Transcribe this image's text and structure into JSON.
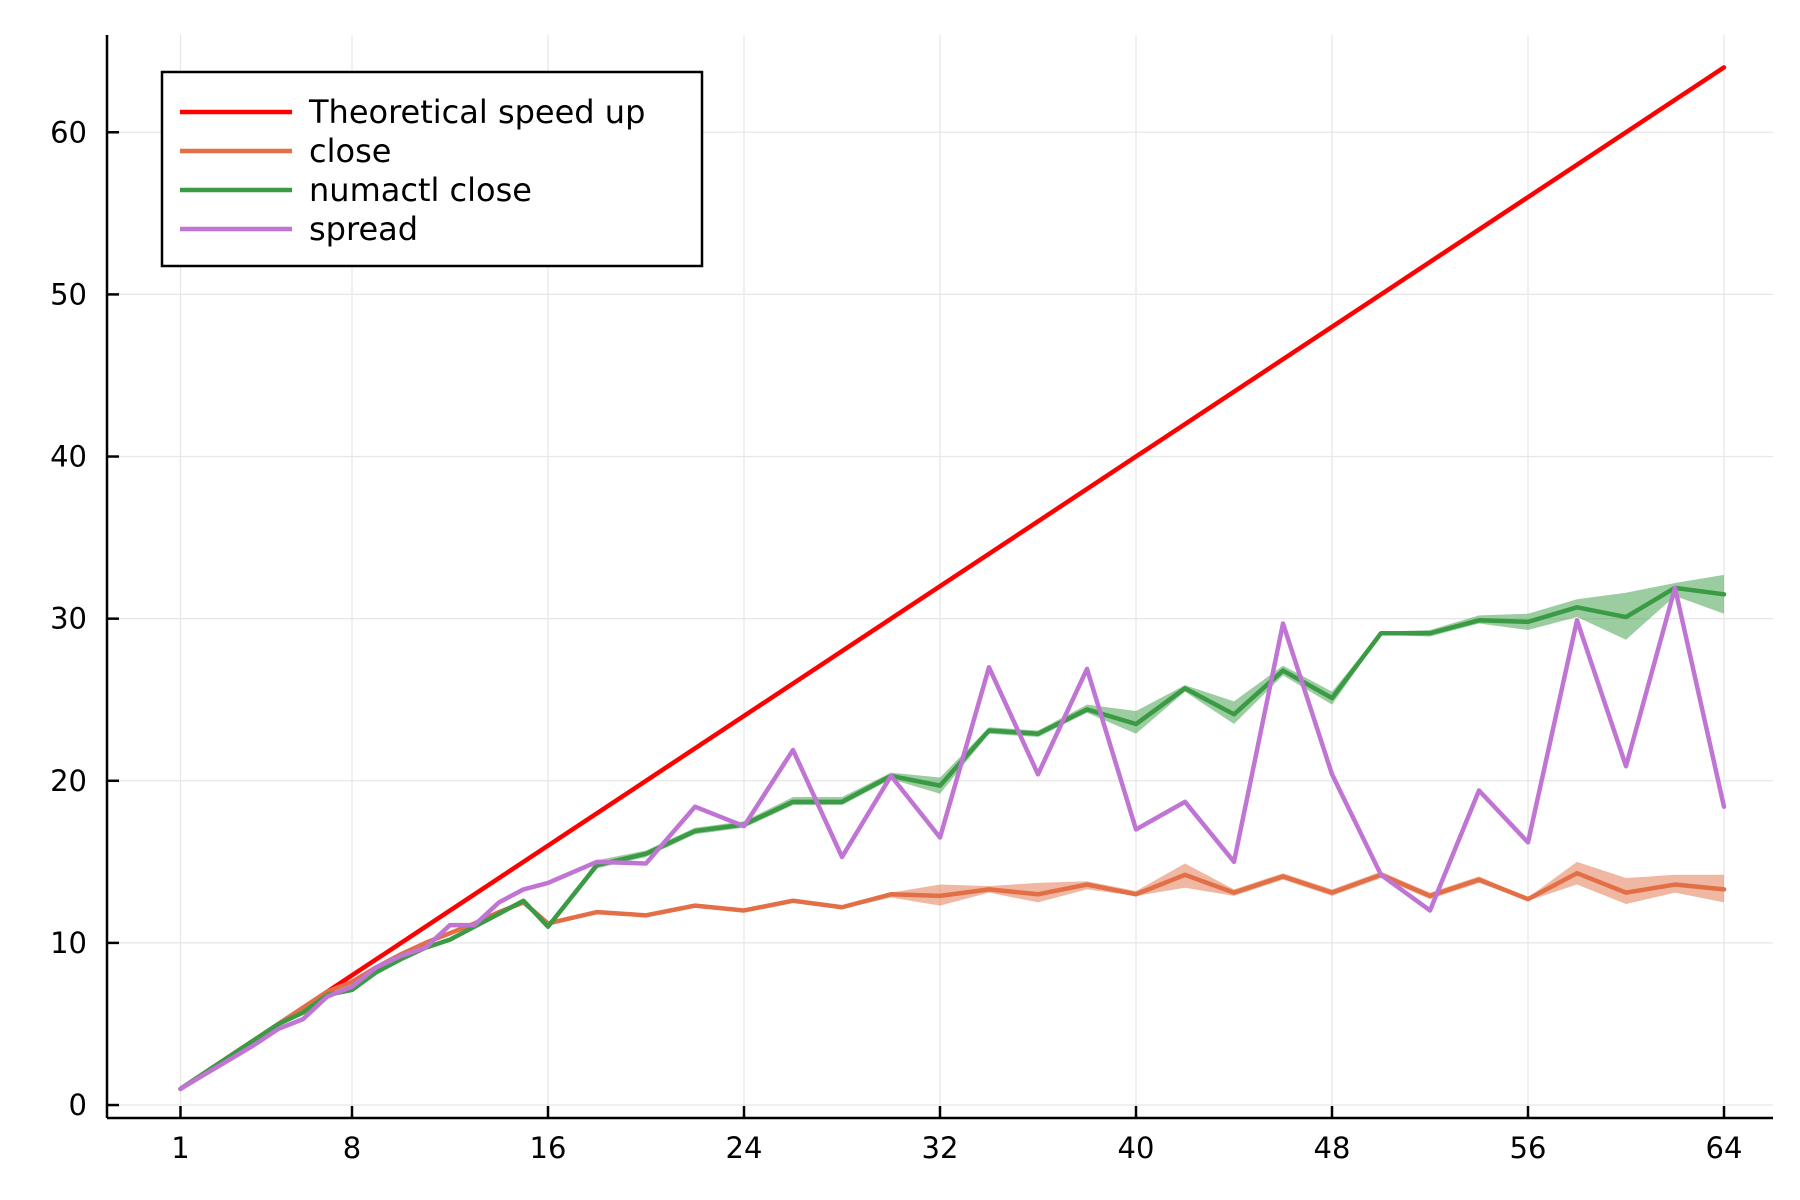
{
  "chart_data": {
    "type": "line",
    "title": "",
    "xlabel": "",
    "ylabel": "",
    "xlim": [
      -2,
      66
    ],
    "ylim": [
      -0.8,
      66
    ],
    "xticks": [
      1,
      8,
      16,
      24,
      32,
      40,
      48,
      56,
      64
    ],
    "xtick_labels": [
      "1",
      "8",
      "16",
      "24",
      "32",
      "40",
      "48",
      "56",
      "64"
    ],
    "yticks": [
      0,
      10,
      20,
      30,
      40,
      50,
      60
    ],
    "ytick_labels": [
      "0",
      "10",
      "20",
      "30",
      "40",
      "50",
      "60"
    ],
    "grid": true,
    "legend_position": "top-left",
    "series": [
      {
        "name": "Theoretical speed up",
        "color": "#ff0000",
        "x": [
          1,
          64
        ],
        "y": [
          1,
          64
        ]
      },
      {
        "name": "close",
        "color": "#e26f46",
        "x": [
          1,
          2,
          3,
          4,
          5,
          6,
          7,
          8,
          9,
          10,
          11,
          12,
          13,
          14,
          15,
          16,
          18,
          20,
          22,
          24,
          26,
          28,
          30,
          32,
          34,
          36,
          38,
          40,
          42,
          44,
          46,
          48,
          50,
          52,
          54,
          56,
          58,
          60,
          62,
          64
        ],
        "y": [
          1,
          2,
          3,
          4,
          5,
          6,
          7,
          7.6,
          8.5,
          9.3,
          10,
          10.6,
          11.2,
          11.9,
          12.5,
          11.2,
          11.9,
          11.7,
          12.3,
          12,
          12.6,
          12.2,
          13,
          12.9,
          13.3,
          13,
          13.6,
          13,
          14.2,
          13.1,
          14.1,
          13.1,
          14.2,
          12.9,
          13.9,
          12.7,
          14.3,
          13.1,
          13.6,
          13.3
        ],
        "band_lower": [
          1,
          2,
          3,
          4,
          5,
          6,
          7,
          7.6,
          8.5,
          9.3,
          10,
          10.6,
          11.2,
          11.9,
          12.5,
          11.2,
          11.8,
          11.6,
          12.2,
          11.9,
          12.5,
          12.1,
          12.8,
          12.3,
          13.1,
          12.5,
          13.3,
          12.9,
          13.4,
          12.9,
          13.9,
          12.9,
          14,
          12.7,
          13.7,
          12.6,
          13.6,
          12.4,
          13.1,
          12.5
        ],
        "band_upper": [
          1,
          2,
          3,
          4,
          5,
          6,
          7,
          7.6,
          8.5,
          9.3,
          10,
          10.6,
          11.2,
          11.9,
          12.5,
          11.2,
          12,
          11.8,
          12.4,
          12.1,
          12.7,
          12.3,
          13.1,
          13.6,
          13.5,
          13.7,
          13.8,
          13.2,
          14.9,
          13.3,
          14.3,
          13.3,
          14.4,
          13.1,
          14.1,
          12.8,
          15,
          14,
          14.2,
          14.2
        ],
        "band_color": "#e26f46"
      },
      {
        "name": "numactl close",
        "color": "#3a9b44",
        "x": [
          1,
          2,
          3,
          4,
          5,
          6,
          7,
          8,
          9,
          10,
          11,
          12,
          13,
          14,
          15,
          16,
          18,
          20,
          22,
          24,
          26,
          28,
          30,
          32,
          34,
          36,
          38,
          40,
          42,
          44,
          46,
          48,
          50,
          52,
          54,
          56,
          58,
          60,
          62,
          64
        ],
        "y": [
          1,
          2,
          3,
          4,
          5,
          5.7,
          6.8,
          7.1,
          8.2,
          9,
          9.7,
          10.2,
          11,
          11.8,
          12.6,
          11,
          14.8,
          15.5,
          16.9,
          17.3,
          18.7,
          18.7,
          20.3,
          19.7,
          23.1,
          22.9,
          24.4,
          23.5,
          25.7,
          24.1,
          26.8,
          25.1,
          29.1,
          29.1,
          29.9,
          29.8,
          30.7,
          30.1,
          31.9,
          31.5
        ],
        "band_lower": [
          1,
          2,
          3,
          4,
          5,
          5.7,
          6.8,
          7.1,
          8.2,
          9,
          9.7,
          10.2,
          11,
          11.8,
          12.6,
          11,
          14.6,
          15.3,
          16.7,
          17.1,
          18.5,
          18.5,
          20.1,
          19.2,
          22.9,
          22.7,
          24.2,
          22.9,
          25.5,
          23.5,
          26.5,
          24.7,
          29,
          28.9,
          29.7,
          29.3,
          30.1,
          28.7,
          31.4,
          30.3
        ],
        "band_upper": [
          1,
          2,
          3,
          4,
          5,
          5.7,
          6.8,
          7.1,
          8.2,
          9,
          9.7,
          10.2,
          11,
          11.8,
          12.6,
          11,
          15.1,
          15.7,
          17.1,
          17.5,
          19,
          19,
          20.5,
          20.2,
          23.3,
          23.1,
          24.7,
          24.3,
          25.9,
          24.9,
          27.1,
          25.5,
          29.2,
          29.3,
          30.2,
          30.3,
          31.2,
          31.6,
          32.2,
          32.7
        ],
        "band_color": "#3a9b44"
      },
      {
        "name": "spread",
        "color": "#c074d4",
        "x": [
          1,
          2,
          3,
          4,
          5,
          6,
          7,
          8,
          9,
          10,
          11,
          12,
          13,
          14,
          15,
          16,
          18,
          20,
          22,
          24,
          26,
          28,
          30,
          32,
          34,
          36,
          38,
          40,
          42,
          44,
          46,
          48,
          50,
          52,
          54,
          56,
          58,
          60,
          62,
          64
        ],
        "y": [
          1,
          1.9,
          2.8,
          3.7,
          4.7,
          5.3,
          6.7,
          7.3,
          8.5,
          9.2,
          9.7,
          11.1,
          11.1,
          12.5,
          13.3,
          13.7,
          15,
          14.9,
          18.4,
          17.2,
          21.9,
          15.3,
          20.3,
          16.5,
          27,
          20.4,
          26.9,
          17,
          18.7,
          15,
          29.7,
          20.4,
          14.2,
          12,
          19.4,
          16.2,
          29.9,
          20.9,
          31.9,
          18.4
        ]
      }
    ]
  }
}
